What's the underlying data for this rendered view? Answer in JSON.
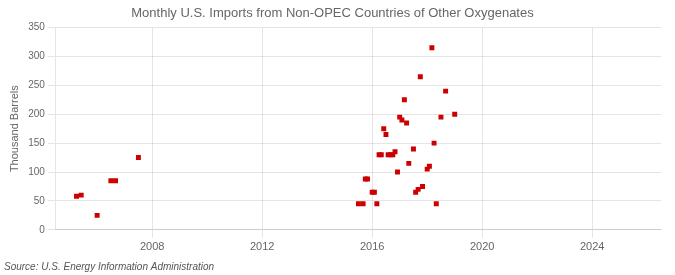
{
  "chart_data": {
    "type": "scatter",
    "title": "Monthly U.S. Imports from Non-OPEC Countries of Other Oxygenates",
    "ylabel": "Thousand Barrels",
    "source": "Source: U.S. Energy Information Administration",
    "x": [
      2005.25,
      2005.42,
      2006.0,
      2006.5,
      2006.67,
      2007.5,
      2015.5,
      2015.67,
      2015.75,
      2015.83,
      2016.0,
      2016.08,
      2016.17,
      2016.25,
      2016.33,
      2016.42,
      2016.5,
      2016.58,
      2016.67,
      2016.75,
      2016.83,
      2016.92,
      2017.0,
      2017.08,
      2017.17,
      2017.25,
      2017.33,
      2017.5,
      2017.58,
      2017.67,
      2017.75,
      2017.83,
      2018.0,
      2018.08,
      2018.17,
      2018.25,
      2018.33,
      2018.5,
      2018.67,
      2019.0
    ],
    "values": [
      58,
      60,
      25,
      85,
      85,
      125,
      45,
      45,
      88,
      88,
      65,
      65,
      45,
      130,
      130,
      175,
      165,
      130,
      130,
      130,
      135,
      100,
      195,
      190,
      225,
      185,
      115,
      140,
      65,
      70,
      265,
      75,
      105,
      110,
      315,
      150,
      45,
      195,
      240,
      200
    ],
    "color": "#cc0000",
    "marker": "square",
    "xlim": [
      2004.5,
      2026.5
    ],
    "xticks": [
      2008,
      2012,
      2016,
      2020,
      2024
    ],
    "ylim": [
      0,
      350
    ],
    "yticks": [
      0,
      50,
      100,
      150,
      200,
      250,
      300,
      350
    ],
    "grid": true
  }
}
